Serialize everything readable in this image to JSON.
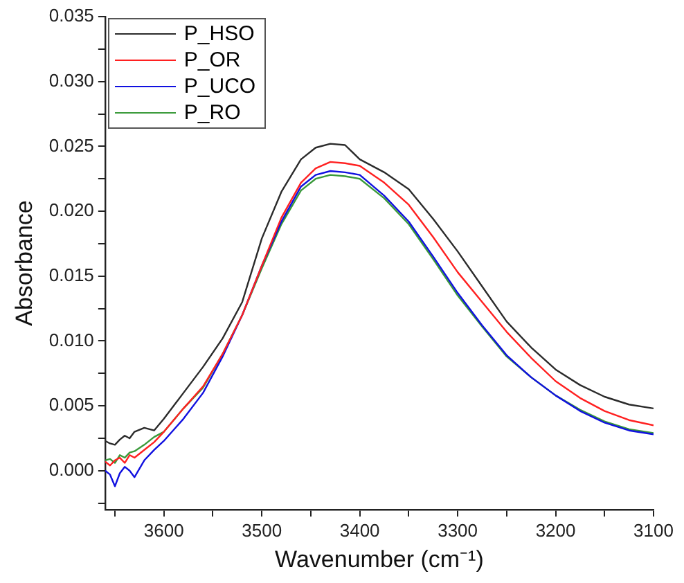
{
  "chart_data": {
    "type": "line",
    "xlabel": "Wavenumber (cm⁻¹)",
    "ylabel": "Absorbance",
    "x": [
      3660,
      3655,
      3650,
      3645,
      3640,
      3635,
      3630,
      3620,
      3610,
      3600,
      3580,
      3560,
      3540,
      3520,
      3500,
      3480,
      3460,
      3445,
      3430,
      3415,
      3400,
      3375,
      3350,
      3325,
      3300,
      3275,
      3250,
      3225,
      3200,
      3175,
      3150,
      3125,
      3100
    ],
    "series": [
      {
        "name": "P_HSO",
        "color": "#2b2b2b",
        "values": [
          0.0023,
          0.0021,
          0.002,
          0.0024,
          0.0027,
          0.0025,
          0.003,
          0.0033,
          0.0031,
          0.004,
          0.006,
          0.008,
          0.0102,
          0.013,
          0.0179,
          0.0215,
          0.024,
          0.0249,
          0.0252,
          0.0251,
          0.024,
          0.023,
          0.0217,
          0.0194,
          0.0169,
          0.0142,
          0.0115,
          0.0095,
          0.0078,
          0.0066,
          0.0057,
          0.0051,
          0.0048
        ]
      },
      {
        "name": "P_OR",
        "color": "#ff2020",
        "values": [
          0.0007,
          0.0004,
          0.0008,
          0.001,
          0.0006,
          0.0012,
          0.001,
          0.0016,
          0.0022,
          0.003,
          0.0048,
          0.0065,
          0.009,
          0.012,
          0.0158,
          0.0195,
          0.0222,
          0.0233,
          0.0238,
          0.0237,
          0.0235,
          0.0222,
          0.0205,
          0.018,
          0.0153,
          0.013,
          0.0107,
          0.0087,
          0.0069,
          0.0056,
          0.0046,
          0.0039,
          0.0035
        ]
      },
      {
        "name": "P_UCO",
        "color": "#1010e0",
        "values": [
          0.0,
          -0.0003,
          -0.0012,
          -0.0002,
          0.0003,
          0.0,
          -0.0005,
          0.0008,
          0.0016,
          0.0023,
          0.004,
          0.006,
          0.0088,
          0.012,
          0.0158,
          0.0192,
          0.0219,
          0.0228,
          0.0231,
          0.023,
          0.0228,
          0.0212,
          0.0192,
          0.0165,
          0.0137,
          0.0112,
          0.0089,
          0.0072,
          0.0058,
          0.0046,
          0.0037,
          0.0031,
          0.0028
        ]
      },
      {
        "name": "P_RO",
        "color": "#3a9a3a",
        "values": [
          0.0008,
          0.0009,
          0.0006,
          0.0012,
          0.001,
          0.0014,
          0.0015,
          0.002,
          0.0026,
          0.003,
          0.0048,
          0.0064,
          0.009,
          0.012,
          0.0156,
          0.019,
          0.0216,
          0.0225,
          0.0228,
          0.0227,
          0.0225,
          0.021,
          0.019,
          0.0163,
          0.0135,
          0.0111,
          0.0088,
          0.0072,
          0.0058,
          0.0047,
          0.0038,
          0.0032,
          0.0029
        ]
      }
    ],
    "xlim": [
      3660,
      3100
    ],
    "xticks": [
      {
        "value": 3650,
        "label": null
      },
      {
        "value": 3600,
        "label": "3600"
      },
      {
        "value": 3550,
        "label": null
      },
      {
        "value": 3500,
        "label": "3500"
      },
      {
        "value": 3450,
        "label": null
      },
      {
        "value": 3400,
        "label": "3400"
      },
      {
        "value": 3350,
        "label": null
      },
      {
        "value": 3300,
        "label": "3300"
      },
      {
        "value": 3250,
        "label": null
      },
      {
        "value": 3200,
        "label": "3200"
      },
      {
        "value": 3150,
        "label": null
      },
      {
        "value": 3100,
        "label": "3100"
      }
    ],
    "ylim": [
      -0.003,
      0.035
    ],
    "yticks": [
      {
        "value": -0.0025,
        "label": null
      },
      {
        "value": 0,
        "label": "0.000"
      },
      {
        "value": 0.0025,
        "label": null
      },
      {
        "value": 0.005,
        "label": "0.005"
      },
      {
        "value": 0.0075,
        "label": null
      },
      {
        "value": 0.01,
        "label": "0.010"
      },
      {
        "value": 0.0125,
        "label": null
      },
      {
        "value": 0.015,
        "label": "0.015"
      },
      {
        "value": 0.0175,
        "label": null
      },
      {
        "value": 0.02,
        "label": "0.020"
      },
      {
        "value": 0.0225,
        "label": null
      },
      {
        "value": 0.025,
        "label": "0.025"
      },
      {
        "value": 0.0275,
        "label": null
      },
      {
        "value": 0.03,
        "label": "0.030"
      },
      {
        "value": 0.0325,
        "label": null
      },
      {
        "value": 0.035,
        "label": "0.035"
      }
    ],
    "grid": false,
    "legend": "top left",
    "marker": "none",
    "line_style": "solid"
  }
}
